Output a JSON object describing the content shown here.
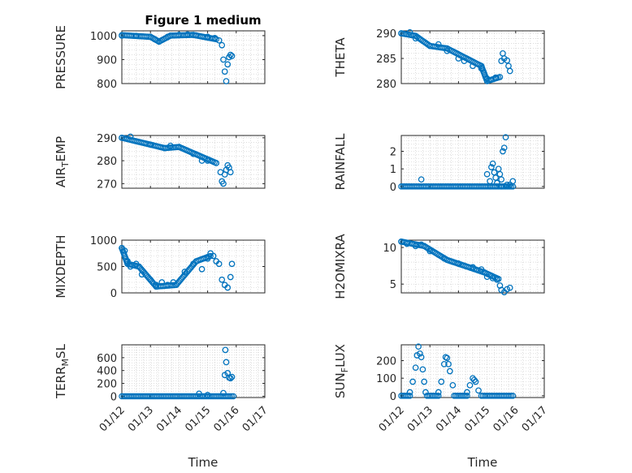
{
  "figure": {
    "title": "Figure 1 medium",
    "xlabel": "Time",
    "marker_color": "#0072BD",
    "grid": "dotted minor and major grid on every subplot"
  },
  "chart_data": [
    {
      "type": "scatter",
      "ylabel": "PRESSURE",
      "xlim": [
        0,
        5
      ],
      "ylim": [
        800,
        1020
      ],
      "yticks": [
        800,
        900,
        1000
      ],
      "ytick_labels": [
        "800",
        "900",
        "1000"
      ],
      "points": [
        [
          0,
          1000
        ],
        [
          0.5,
          999
        ],
        [
          1,
          995
        ],
        [
          1.15,
          985
        ],
        [
          1.3,
          975
        ],
        [
          1.6,
          995
        ],
        [
          2,
          1003
        ],
        [
          2.3,
          1005
        ],
        [
          2.6,
          1001
        ],
        [
          3,
          995
        ],
        [
          3.25,
          990
        ],
        [
          3.4,
          980
        ],
        [
          3.5,
          960
        ],
        [
          3.55,
          900
        ],
        [
          3.6,
          850
        ],
        [
          3.65,
          810
        ],
        [
          3.7,
          880
        ],
        [
          3.75,
          910
        ],
        [
          3.8,
          920
        ],
        [
          3.85,
          915
        ]
      ],
      "segments": [
        [
          [
            0,
            1002
          ],
          [
            1.0,
            995
          ]
        ],
        [
          [
            1.0,
            995
          ],
          [
            1.3,
            975
          ]
        ],
        [
          [
            1.3,
            975
          ],
          [
            1.7,
            1000
          ]
        ],
        [
          [
            1.7,
            1000
          ],
          [
            2.5,
            1003
          ]
        ],
        [
          [
            2.5,
            1003
          ],
          [
            3.3,
            985
          ]
        ]
      ]
    },
    {
      "type": "scatter",
      "ylabel": "THETA",
      "xlim": [
        0,
        5
      ],
      "ylim": [
        280,
        290.5
      ],
      "yticks": [
        280,
        285,
        290
      ],
      "ytick_labels": [
        "280",
        "285",
        "290"
      ],
      "points": [
        [
          0,
          290
        ],
        [
          0.3,
          290.2
        ],
        [
          0.5,
          289
        ],
        [
          1,
          287.5
        ],
        [
          1.3,
          287.8
        ],
        [
          1.6,
          286.5
        ],
        [
          2,
          285
        ],
        [
          2.2,
          284.5
        ],
        [
          2.5,
          283.5
        ],
        [
          2.8,
          283
        ],
        [
          3.0,
          281
        ],
        [
          3.3,
          281.2
        ],
        [
          3.5,
          284.5
        ],
        [
          3.55,
          286
        ],
        [
          3.6,
          285
        ],
        [
          3.7,
          284.6
        ],
        [
          3.75,
          283.5
        ],
        [
          3.8,
          282.5
        ]
      ],
      "segments": [
        [
          [
            0,
            290
          ],
          [
            0.5,
            289.5
          ]
        ],
        [
          [
            0.5,
            289.5
          ],
          [
            1.0,
            287.5
          ]
        ],
        [
          [
            1.0,
            287.5
          ],
          [
            1.6,
            287
          ]
        ],
        [
          [
            1.6,
            287
          ],
          [
            2.8,
            283.5
          ]
        ],
        [
          [
            2.8,
            283.5
          ],
          [
            3.0,
            280.5
          ]
        ],
        [
          [
            3.0,
            280.5
          ],
          [
            3.45,
            281.3
          ]
        ]
      ]
    },
    {
      "type": "scatter",
      "ylabel": "AIR",
      "ylabel_subscript": "T",
      "ylabel_suffix": "EMP",
      "xlim": [
        0,
        5
      ],
      "ylim": [
        268,
        291
      ],
      "yticks": [
        270,
        280,
        290
      ],
      "ytick_labels": [
        "270",
        "280",
        "290"
      ],
      "points": [
        [
          0,
          290
        ],
        [
          0.3,
          290.5
        ],
        [
          1,
          287
        ],
        [
          1.5,
          285.5
        ],
        [
          1.7,
          286.5
        ],
        [
          2,
          286
        ],
        [
          2.5,
          283
        ],
        [
          2.8,
          280
        ],
        [
          3.0,
          280
        ],
        [
          3.3,
          279
        ],
        [
          3.45,
          275
        ],
        [
          3.5,
          271
        ],
        [
          3.55,
          270
        ],
        [
          3.6,
          274
        ],
        [
          3.65,
          276
        ],
        [
          3.7,
          278
        ],
        [
          3.75,
          277
        ],
        [
          3.8,
          275
        ]
      ],
      "segments": [
        [
          [
            0,
            290
          ],
          [
            1.5,
            285.5
          ]
        ],
        [
          [
            1.5,
            285.5
          ],
          [
            2.0,
            286
          ]
        ],
        [
          [
            2.0,
            286
          ],
          [
            3.3,
            279
          ]
        ]
      ]
    },
    {
      "type": "scatter",
      "ylabel": "RAINFALL",
      "xlim": [
        0,
        5
      ],
      "ylim": [
        -0.1,
        2.9
      ],
      "yticks": [
        0,
        1,
        2
      ],
      "ytick_labels": [
        "0",
        "1",
        "2"
      ],
      "points": [
        [
          0.7,
          0.4
        ],
        [
          3.0,
          0.7
        ],
        [
          3.1,
          0.3
        ],
        [
          3.15,
          1.1
        ],
        [
          3.2,
          1.3
        ],
        [
          3.25,
          0.8
        ],
        [
          3.3,
          0.5
        ],
        [
          3.35,
          0.2
        ],
        [
          3.4,
          1.0
        ],
        [
          3.45,
          0.7
        ],
        [
          3.5,
          0.4
        ],
        [
          3.55,
          2.0
        ],
        [
          3.6,
          2.2
        ],
        [
          3.65,
          2.8
        ],
        [
          3.7,
          0.1
        ],
        [
          3.8,
          0.1
        ],
        [
          3.9,
          0.3
        ],
        [
          3.1,
          0.0
        ],
        [
          3.5,
          0.0
        ]
      ],
      "segments": [
        [
          [
            0,
            0
          ],
          [
            3.9,
            0
          ]
        ]
      ]
    },
    {
      "type": "scatter",
      "ylabel": "MIXDEPTH",
      "xlim": [
        0,
        5
      ],
      "ylim": [
        0,
        1000
      ],
      "yticks": [
        0,
        500,
        1000
      ],
      "ytick_labels": [
        "0",
        "500",
        "1000"
      ],
      "points": [
        [
          0,
          850
        ],
        [
          0.1,
          800
        ],
        [
          0.2,
          600
        ],
        [
          0.3,
          500
        ],
        [
          0.5,
          550
        ],
        [
          0.7,
          350
        ],
        [
          1,
          250
        ],
        [
          1.2,
          150
        ],
        [
          1.4,
          200
        ],
        [
          1.6,
          150
        ],
        [
          1.8,
          200
        ],
        [
          2.2,
          400
        ],
        [
          2.5,
          550
        ],
        [
          2.8,
          450
        ],
        [
          3.0,
          650
        ],
        [
          3.1,
          750
        ],
        [
          3.2,
          700
        ],
        [
          3.3,
          600
        ],
        [
          3.4,
          550
        ],
        [
          3.5,
          250
        ],
        [
          3.6,
          150
        ],
        [
          3.7,
          100
        ],
        [
          3.8,
          300
        ],
        [
          3.85,
          550
        ]
      ],
      "segments": [
        [
          [
            0,
            850
          ],
          [
            0.2,
            550
          ]
        ],
        [
          [
            0.2,
            550
          ],
          [
            0.6,
            500
          ]
        ],
        [
          [
            0.6,
            500
          ],
          [
            1.2,
            120
          ]
        ],
        [
          [
            1.2,
            120
          ],
          [
            1.9,
            150
          ]
        ],
        [
          [
            1.9,
            150
          ],
          [
            2.6,
            600
          ]
        ],
        [
          [
            2.6,
            600
          ],
          [
            3.1,
            700
          ]
        ]
      ]
    },
    {
      "type": "scatter",
      "ylabel": "H2OMIXRA",
      "xlim": [
        0,
        5
      ],
      "ylim": [
        3.8,
        11
      ],
      "yticks": [
        5,
        10
      ],
      "ytick_labels": [
        "5",
        "10"
      ],
      "points": [
        [
          0,
          10.8
        ],
        [
          0.2,
          10.5
        ],
        [
          0.5,
          10.2
        ],
        [
          0.7,
          10.4
        ],
        [
          1,
          9.5
        ],
        [
          1.5,
          8.5
        ],
        [
          2,
          7.8
        ],
        [
          2.5,
          7.3
        ],
        [
          2.8,
          7.0
        ],
        [
          3.0,
          6.0
        ],
        [
          3.2,
          5.8
        ],
        [
          3.35,
          5.6
        ],
        [
          3.45,
          4.8
        ],
        [
          3.5,
          4.2
        ],
        [
          3.6,
          3.9
        ],
        [
          3.7,
          4.3
        ],
        [
          3.8,
          4.5
        ]
      ],
      "segments": [
        [
          [
            0,
            10.8
          ],
          [
            0.8,
            10.2
          ]
        ],
        [
          [
            0.8,
            10.2
          ],
          [
            1.6,
            8.3
          ]
        ],
        [
          [
            1.6,
            8.3
          ],
          [
            2.9,
            6.6
          ]
        ],
        [
          [
            2.9,
            6.6
          ],
          [
            3.4,
            5.7
          ]
        ]
      ]
    },
    {
      "type": "scatter",
      "ylabel": "TERR",
      "ylabel_subscript": "M",
      "ylabel_suffix": "SL",
      "xlim": [
        0,
        5
      ],
      "ylim": [
        -20,
        800
      ],
      "yticks": [
        0,
        200,
        400,
        600
      ],
      "ytick_labels": [
        "0",
        "200",
        "400",
        "600"
      ],
      "points": [
        [
          3.55,
          50
        ],
        [
          3.6,
          330
        ],
        [
          3.62,
          720
        ],
        [
          3.65,
          530
        ],
        [
          3.7,
          360
        ],
        [
          3.75,
          290
        ],
        [
          3.8,
          280
        ],
        [
          3.85,
          300
        ],
        [
          2.7,
          40
        ],
        [
          3.0,
          20
        ]
      ],
      "segments": [
        [
          [
            0,
            0
          ],
          [
            3.9,
            0
          ]
        ]
      ]
    },
    {
      "type": "scatter",
      "ylabel": "SUN",
      "ylabel_subscript": "F",
      "ylabel_suffix": "LUX",
      "xlim": [
        0,
        5
      ],
      "ylim": [
        -10,
        290
      ],
      "yticks": [
        0,
        100,
        200
      ],
      "ytick_labels": [
        "0",
        "100",
        "200"
      ],
      "points": [
        [
          0.3,
          20
        ],
        [
          0.4,
          80
        ],
        [
          0.5,
          160
        ],
        [
          0.55,
          230
        ],
        [
          0.6,
          280
        ],
        [
          0.65,
          240
        ],
        [
          0.7,
          220
        ],
        [
          0.75,
          150
        ],
        [
          0.8,
          80
        ],
        [
          0.85,
          20
        ],
        [
          1.3,
          20
        ],
        [
          1.4,
          80
        ],
        [
          1.5,
          180
        ],
        [
          1.55,
          220
        ],
        [
          1.6,
          215
        ],
        [
          1.65,
          180
        ],
        [
          1.7,
          140
        ],
        [
          1.8,
          60
        ],
        [
          2.3,
          20
        ],
        [
          2.4,
          60
        ],
        [
          2.5,
          100
        ],
        [
          2.55,
          90
        ],
        [
          2.6,
          80
        ],
        [
          2.7,
          30
        ]
      ],
      "segments": [
        [
          [
            0,
            0
          ],
          [
            0.3,
            0
          ]
        ],
        [
          [
            0.9,
            0
          ],
          [
            1.3,
            0
          ]
        ],
        [
          [
            1.85,
            0
          ],
          [
            2.3,
            0
          ]
        ],
        [
          [
            2.8,
            0
          ],
          [
            3.9,
            0
          ]
        ]
      ]
    }
  ],
  "x_ticks": {
    "values": [
      0,
      1,
      2,
      3,
      4,
      5
    ],
    "labels": [
      "01/12",
      "01/13",
      "01/14",
      "01/15",
      "01/16",
      "01/17"
    ]
  }
}
